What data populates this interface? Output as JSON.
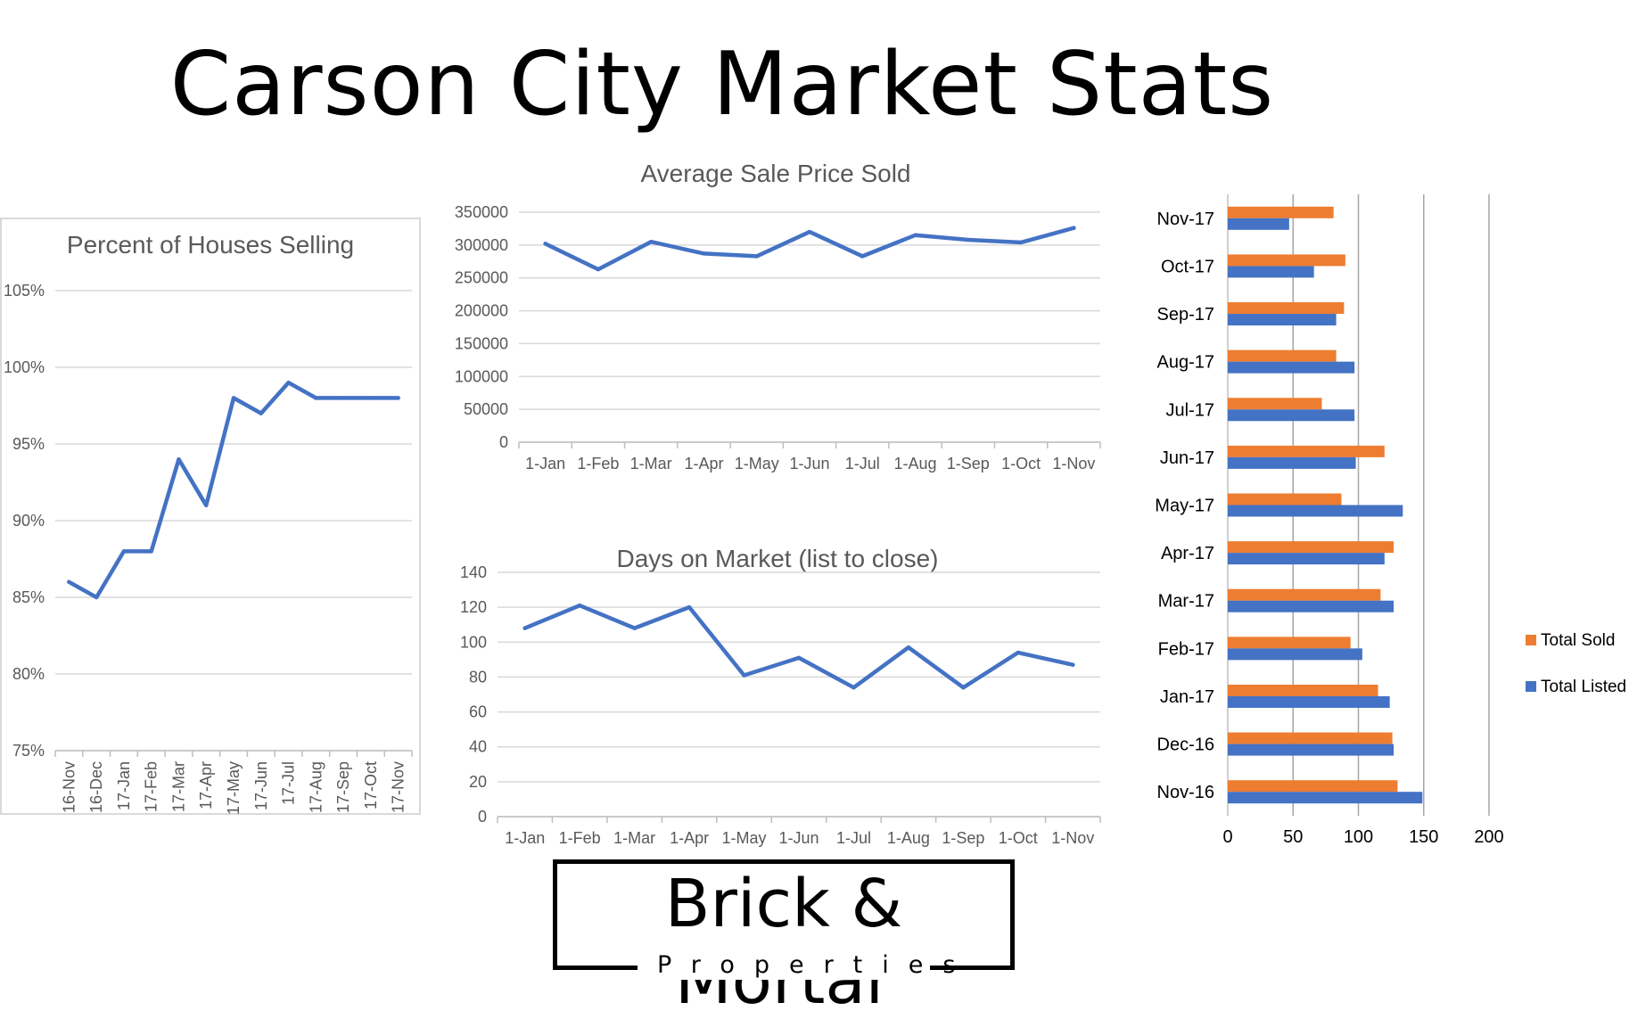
{
  "page": {
    "title": "Carson City Market Stats"
  },
  "logo": {
    "name": "Brick & Mortar",
    "tagline": "Properties"
  },
  "chart_data": [
    {
      "id": "percent-selling",
      "type": "line",
      "title": "Percent of Houses Selling",
      "categories": [
        "16-Nov",
        "16-Dec",
        "17-Jan",
        "17-Feb",
        "17-Mar",
        "17-Apr",
        "17-May",
        "17-Jun",
        "17-Jul",
        "17-Aug",
        "17-Sep",
        "17-Oct",
        "17-Nov"
      ],
      "series": [
        {
          "values": [
            86,
            85,
            88,
            88,
            94,
            91,
            98,
            97,
            99,
            98,
            98,
            98,
            98
          ],
          "color": "#4472C4"
        }
      ],
      "yticks": [
        75,
        80,
        85,
        90,
        95,
        100,
        105
      ],
      "ytick_labels": [
        "75%",
        "80%",
        "85%",
        "90%",
        "95%",
        "100%",
        "105%"
      ],
      "ylim": [
        73,
        108
      ],
      "grid": true
    },
    {
      "id": "avg-sale-price",
      "type": "line",
      "title": "Average Sale Price Sold",
      "categories": [
        "1-Jan",
        "1-Feb",
        "1-Mar",
        "1-Apr",
        "1-May",
        "1-Jun",
        "1-Jul",
        "1-Aug",
        "1-Sep",
        "1-Oct",
        "1-Nov"
      ],
      "series": [
        {
          "values": [
            302000,
            263000,
            305000,
            287000,
            283000,
            320000,
            283000,
            315000,
            308000,
            304000,
            326000
          ],
          "color": "#4472C4"
        }
      ],
      "yticks": [
        0,
        50000,
        100000,
        150000,
        200000,
        250000,
        300000,
        350000
      ],
      "ytick_labels": [
        "0",
        "50000",
        "100000",
        "150000",
        "200000",
        "250000",
        "300000",
        "350000"
      ],
      "ylim": [
        0,
        350000
      ],
      "grid": true
    },
    {
      "id": "days-on-market",
      "type": "line",
      "title": "Days on Market (list to close)",
      "categories": [
        "1-Jan",
        "1-Feb",
        "1-Mar",
        "1-Apr",
        "1-May",
        "1-Jun",
        "1-Jul",
        "1-Aug",
        "1-Sep",
        "1-Oct",
        "1-Nov"
      ],
      "series": [
        {
          "values": [
            108,
            121,
            108,
            120,
            81,
            91,
            74,
            97,
            74,
            94,
            87
          ],
          "color": "#4472C4"
        }
      ],
      "yticks": [
        0,
        20,
        40,
        60,
        80,
        100,
        120,
        140
      ],
      "ytick_labels": [
        "0",
        "20",
        "40",
        "60",
        "80",
        "100",
        "120",
        "140"
      ],
      "ylim": [
        0,
        140
      ],
      "grid": true
    },
    {
      "id": "sold-vs-listed",
      "type": "bar",
      "orientation": "horizontal",
      "categories": [
        "Nov-16",
        "Dec-16",
        "Jan-17",
        "Feb-17",
        "Mar-17",
        "Apr-17",
        "May-17",
        "Jun-17",
        "Jul-17",
        "Aug-17",
        "Sep-17",
        "Oct-17",
        "Nov-17"
      ],
      "series": [
        {
          "name": "Total Sold",
          "color": "#ED7D31",
          "values": [
            130,
            126,
            115,
            94,
            117,
            127,
            87,
            120,
            72,
            83,
            89,
            90,
            81
          ]
        },
        {
          "name": "Total Listed",
          "color": "#4472C4",
          "values": [
            149,
            127,
            124,
            103,
            127,
            120,
            134,
            98,
            97,
            97,
            83,
            66,
            47
          ]
        }
      ],
      "xticks": [
        0,
        50,
        100,
        150,
        200
      ],
      "xtick_labels": [
        "0",
        "50",
        "100",
        "150",
        "200"
      ],
      "xlim": [
        0,
        200
      ],
      "legend": "right",
      "grid": true
    }
  ]
}
